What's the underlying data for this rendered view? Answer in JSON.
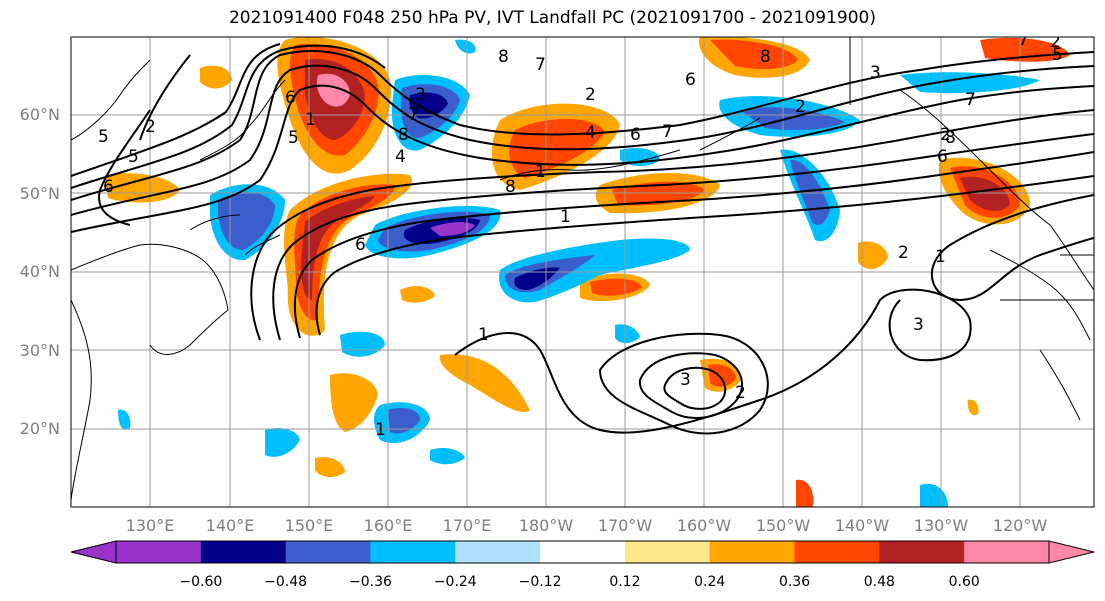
{
  "title": "2021091400 F048 250 hPa PV, IVT Landfall PC (2021091700 - 2021091900)",
  "latitude_labels": [
    "20°N",
    "30°N",
    "40°N",
    "50°N",
    "60°N"
  ],
  "longitude_labels": [
    "130°E",
    "140°E",
    "150°E",
    "160°E",
    "170°E",
    "180°W",
    "170°W",
    "160°W",
    "150°W",
    "140°W",
    "130°W",
    "120°W"
  ],
  "colorbar": {
    "tick_labels": [
      "−0.60",
      "−0.48",
      "−0.36",
      "−0.24",
      "−0.12",
      "0.12",
      "0.24",
      "0.36",
      "0.48",
      "0.60"
    ],
    "colors": [
      "#9933cc",
      "#00008b",
      "#3a5fcd",
      "#00bfff",
      "#b0e2ff",
      "#ffffff",
      "#ffe88a",
      "#ffa500",
      "#ff4500",
      "#b22222",
      "#ff88aa"
    ]
  },
  "contour_labels": [
    "5",
    "2",
    "5",
    "6",
    "6",
    "5",
    "1",
    "8",
    "7",
    "3",
    "4",
    "6",
    "7",
    "8",
    "1",
    "1",
    "2",
    "7",
    "3",
    "6",
    "8",
    "3",
    "2",
    "2",
    "7",
    "6",
    "2",
    "5",
    "6",
    "7",
    "8",
    "8",
    "7",
    "6",
    "1",
    "3",
    "2",
    "1",
    "3",
    "2",
    "1",
    "5"
  ]
}
